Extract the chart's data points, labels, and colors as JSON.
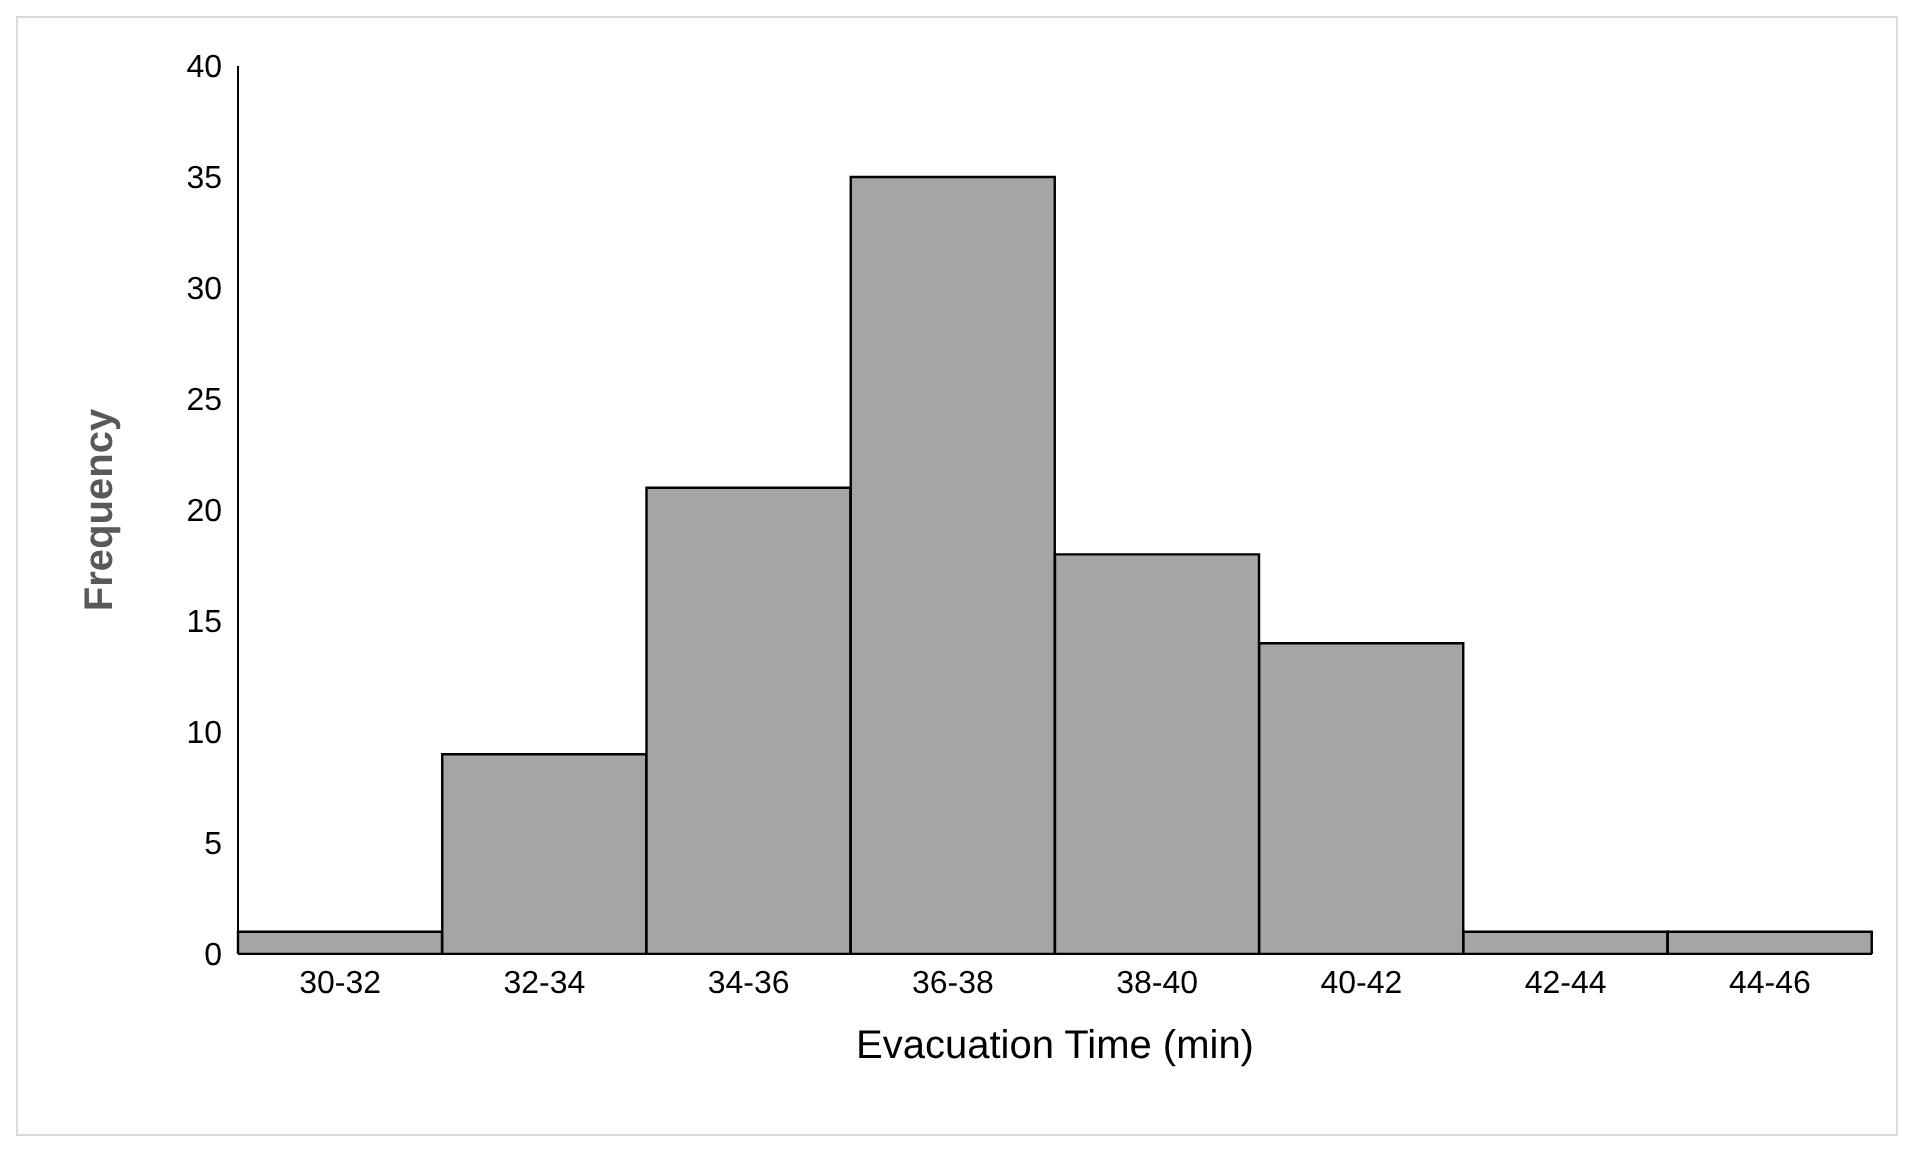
{
  "chart_data": {
    "type": "bar",
    "xlabel": "Evacuation Time (min)",
    "ylabel": "Frequency",
    "categories": [
      "30-32",
      "32-34",
      "34-36",
      "36-38",
      "38-40",
      "40-42",
      "42-44",
      "44-46"
    ],
    "values": [
      1,
      9,
      21,
      35,
      18,
      14,
      1,
      1
    ],
    "color": "#a5a5a5",
    "ylim": [
      0,
      40
    ],
    "yticks": [
      0,
      5,
      10,
      15,
      20,
      25,
      30,
      35,
      40
    ]
  }
}
